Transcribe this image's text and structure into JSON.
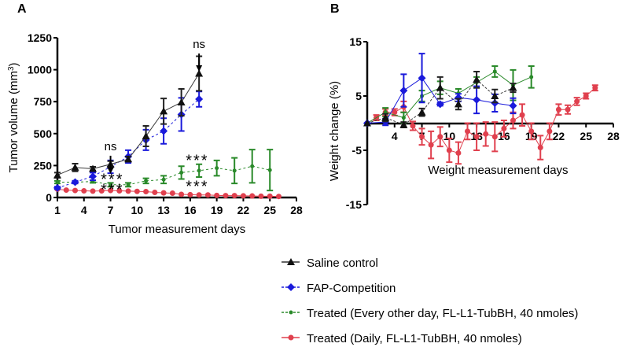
{
  "panel_labels": {
    "a": "A",
    "b": "B"
  },
  "colors": {
    "saline": "#3a3a3a",
    "fap": "#1a1adb",
    "every_other": "#2a8a2a",
    "daily": "#e0404e"
  },
  "legend": [
    {
      "key": "saline",
      "label": "Saline control",
      "marker": "triangle",
      "dash": false
    },
    {
      "key": "fap",
      "label": "FAP-Competition",
      "marker": "diamond",
      "dash": true
    },
    {
      "key": "every_other",
      "label": "Treated (Every other day, FL-L1-TubBH,  40 nmoles)",
      "marker": "dot",
      "dash": true
    },
    {
      "key": "daily",
      "label": "Treated (Daily, FL-L1-TubBH,  40 nmoles)",
      "marker": "dot",
      "dash": false
    }
  ],
  "chart_data": [
    {
      "type": "line",
      "panel": "A",
      "xlabel": "Tumor measurement days",
      "ylabel": "Tumor volume (mm",
      "ylabel_sup": "3",
      "ylabel_close": ")",
      "xlim": [
        1,
        28
      ],
      "ylim": [
        0,
        1250
      ],
      "xticks": [
        1,
        4,
        7,
        10,
        13,
        16,
        19,
        22,
        25,
        28
      ],
      "yticks": [
        0,
        250,
        500,
        750,
        1000,
        1250
      ],
      "annotations": [
        {
          "text": "ns",
          "x": 7,
          "y": 370,
          "arrow": true
        },
        {
          "text": "ns",
          "x": 17,
          "y": 1170,
          "arrow": true
        },
        {
          "text": "***",
          "x": 7.2,
          "y": 150
        },
        {
          "text": "***",
          "x": 7.2,
          "y": 70
        },
        {
          "text": "***",
          "x": 16.8,
          "y": 300
        },
        {
          "text": "***",
          "x": 16.8,
          "y": 95
        }
      ],
      "series": [
        {
          "key": "saline",
          "name": "Saline control",
          "x": [
            1,
            3,
            5,
            7,
            9,
            11,
            13,
            15,
            17
          ],
          "y": [
            175,
            235,
            225,
            260,
            300,
            480,
            675,
            745,
            970
          ],
          "err": [
            20,
            30,
            15,
            25,
            20,
            80,
            100,
            105,
            135
          ]
        },
        {
          "key": "fap",
          "name": "FAP-Competition",
          "x": [
            1,
            3,
            5,
            7,
            9,
            11,
            13,
            15,
            17
          ],
          "y": [
            75,
            120,
            165,
            240,
            320,
            450,
            520,
            650,
            770
          ],
          "err": [
            10,
            10,
            30,
            50,
            50,
            80,
            100,
            130,
            60
          ]
        },
        {
          "key": "every_other",
          "name": "Treated (Every other day, FL-L1-TubBH,  40 nmoles)",
          "x": [
            1,
            3,
            5,
            7,
            9,
            11,
            13,
            15,
            17,
            19,
            21,
            23,
            25
          ],
          "y": [
            120,
            120,
            125,
            100,
            100,
            130,
            140,
            195,
            210,
            230,
            210,
            245,
            215
          ],
          "err": [
            10,
            10,
            10,
            15,
            15,
            20,
            30,
            50,
            50,
            60,
            100,
            130,
            160
          ]
        },
        {
          "key": "daily",
          "name": "Treated (Daily, FL-L1-TubBH,  40 nmoles)",
          "x": [
            1,
            2,
            3,
            4,
            5,
            6,
            7,
            8,
            9,
            10,
            11,
            12,
            13,
            14,
            15,
            16,
            17,
            18,
            19,
            20,
            21,
            22,
            23,
            24,
            25,
            26
          ],
          "y": [
            65,
            58,
            55,
            52,
            50,
            52,
            55,
            52,
            50,
            48,
            46,
            40,
            36,
            34,
            25,
            22,
            20,
            20,
            16,
            15,
            15,
            13,
            12,
            10,
            10,
            8
          ],
          "err": [
            0,
            0,
            0,
            0,
            0,
            0,
            0,
            0,
            0,
            0,
            0,
            0,
            0,
            0,
            0,
            0,
            0,
            0,
            0,
            0,
            0,
            0,
            0,
            0,
            0,
            0
          ]
        }
      ]
    },
    {
      "type": "line",
      "panel": "B",
      "xlabel": "Weight  measurement days",
      "ylabel": "Weight  change  (%)",
      "xlim": [
        1,
        28
      ],
      "ylim": [
        -15,
        15
      ],
      "xticks": [
        4,
        7,
        10,
        13,
        16,
        19,
        22,
        25,
        28
      ],
      "yticks": [
        -15,
        -5,
        5,
        15
      ],
      "series": [
        {
          "key": "saline",
          "name": "Saline control",
          "x": [
            1,
            3,
            5,
            7,
            9,
            11,
            13,
            15,
            17
          ],
          "y": [
            0,
            1,
            -0.3,
            2,
            6.5,
            3.5,
            8,
            5,
            6.5
          ],
          "err": [
            0,
            0.7,
            0.5,
            0.7,
            2,
            1,
            1.5,
            1.2,
            0.8
          ]
        },
        {
          "key": "fap",
          "name": "FAP-Competition",
          "x": [
            1,
            3,
            5,
            7,
            9,
            11,
            13,
            15,
            17
          ],
          "y": [
            0,
            0.2,
            6,
            8.3,
            3.5,
            4.7,
            4.3,
            3.7,
            3.2
          ],
          "err": [
            0,
            0.6,
            3,
            4.5,
            0.3,
            0.7,
            2.5,
            1.6,
            1.4
          ]
        },
        {
          "key": "every_other",
          "name": "Treated (Every other day, FL-L1-TubBH,  40 nmoles)",
          "x": [
            1,
            3,
            5,
            7,
            9,
            11,
            13,
            15,
            17,
            19
          ],
          "y": [
            0,
            2,
            1,
            5,
            6.5,
            5.5,
            7.5,
            9.5,
            7,
            8.5
          ],
          "err": [
            0,
            0.8,
            1,
            1,
            1.2,
            0.8,
            1,
            1,
            2.8,
            2
          ]
        },
        {
          "key": "daily",
          "name": "Treated (Daily, FL-L1-TubBH,  40 nmoles)",
          "x": [
            1,
            2,
            3,
            4,
            5,
            6,
            7,
            8,
            9,
            10,
            11,
            12,
            13,
            14,
            15,
            16,
            17,
            18,
            19,
            20,
            21,
            22,
            23,
            24,
            25,
            26
          ],
          "y": [
            0,
            1,
            2,
            2,
            3,
            -0.5,
            -2.5,
            -4,
            -2.5,
            -5,
            -5.5,
            -1.5,
            -2.5,
            -2,
            -2.5,
            -1,
            0.5,
            1.5,
            -1.5,
            -4.5,
            -1.5,
            2.5,
            2.5,
            4,
            5,
            6.5
          ],
          "err": [
            0,
            0.5,
            0.6,
            0.6,
            1,
            0.8,
            1.5,
            2.5,
            1.8,
            2.2,
            2,
            1.5,
            2.5,
            2.2,
            2.7,
            1.5,
            1.5,
            2,
            1.5,
            2.2,
            1.5,
            1,
            0.8,
            0.7,
            0.5,
            0.5
          ]
        }
      ]
    }
  ]
}
